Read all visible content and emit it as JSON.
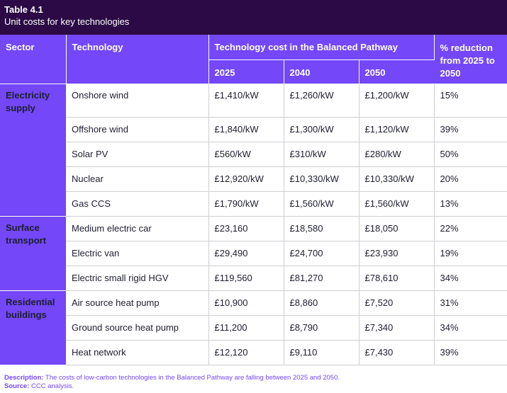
{
  "header": {
    "table_number": "Table 4.1",
    "caption": "Unit costs for key technologies"
  },
  "columns": {
    "sector": "Sector",
    "technology": "Technology",
    "cost_group": "Technology cost in the Balanced Pathway",
    "years": [
      "2025",
      "2040",
      "2050"
    ],
    "reduction": "% reduction from 2025 to 2050"
  },
  "groups": [
    {
      "sector": "Electricity supply",
      "rows": [
        {
          "technology": "Onshore wind",
          "c2025": "£1,410/kW",
          "c2040": "£1,260/kW",
          "c2050": "£1,200/kW",
          "reduction": "15%"
        },
        {
          "technology": "Offshore wind",
          "c2025": "£1,840/kW",
          "c2040": "£1,300/kW",
          "c2050": "£1,120/kW",
          "reduction": "39%"
        },
        {
          "technology": "Solar PV",
          "c2025": "£560/kW",
          "c2040": "£310/kW",
          "c2050": "£280/kW",
          "reduction": "50%"
        },
        {
          "technology": "Nuclear",
          "c2025": "£12,920/kW",
          "c2040": "£10,330/kW",
          "c2050": "£10,330/kW",
          "reduction": "20%"
        },
        {
          "technology": "Gas CCS",
          "c2025": "£1,790/kW",
          "c2040": "£1,560/kW",
          "c2050": "£1,560/kW",
          "reduction": "13%"
        }
      ]
    },
    {
      "sector": "Surface transport",
      "rows": [
        {
          "technology": "Medium electric car",
          "c2025": "£23,160",
          "c2040": "£18,580",
          "c2050": "£18,050",
          "reduction": "22%"
        },
        {
          "technology": "Electric van",
          "c2025": "£29,490",
          "c2040": "£24,700",
          "c2050": "£23,930",
          "reduction": "19%"
        },
        {
          "technology": "Electric small rigid HGV",
          "c2025": "£119,560",
          "c2040": "£81,270",
          "c2050": "£78,610",
          "reduction": "34%"
        }
      ]
    },
    {
      "sector": "Residential buildings",
      "rows": [
        {
          "technology": "Air source heat pump",
          "c2025": "£10,900",
          "c2040": "£8,860",
          "c2050": "£7,520",
          "reduction": "31%"
        },
        {
          "technology": "Ground source heat pump",
          "c2025": "£11,200",
          "c2040": "£8,790",
          "c2050": "£7,340",
          "reduction": "34%"
        },
        {
          "technology": "Heat network",
          "c2025": "£12,120",
          "c2040": "£9,110",
          "c2050": "£7,430",
          "reduction": "39%"
        }
      ]
    }
  ],
  "footer": {
    "description_label": "Description:",
    "description_text": "The costs of low-carbon technologies in the Balanced Pathway are falling between 2025 and 2050.",
    "source_label": "Source:",
    "source_text": "CCC analysis."
  }
}
